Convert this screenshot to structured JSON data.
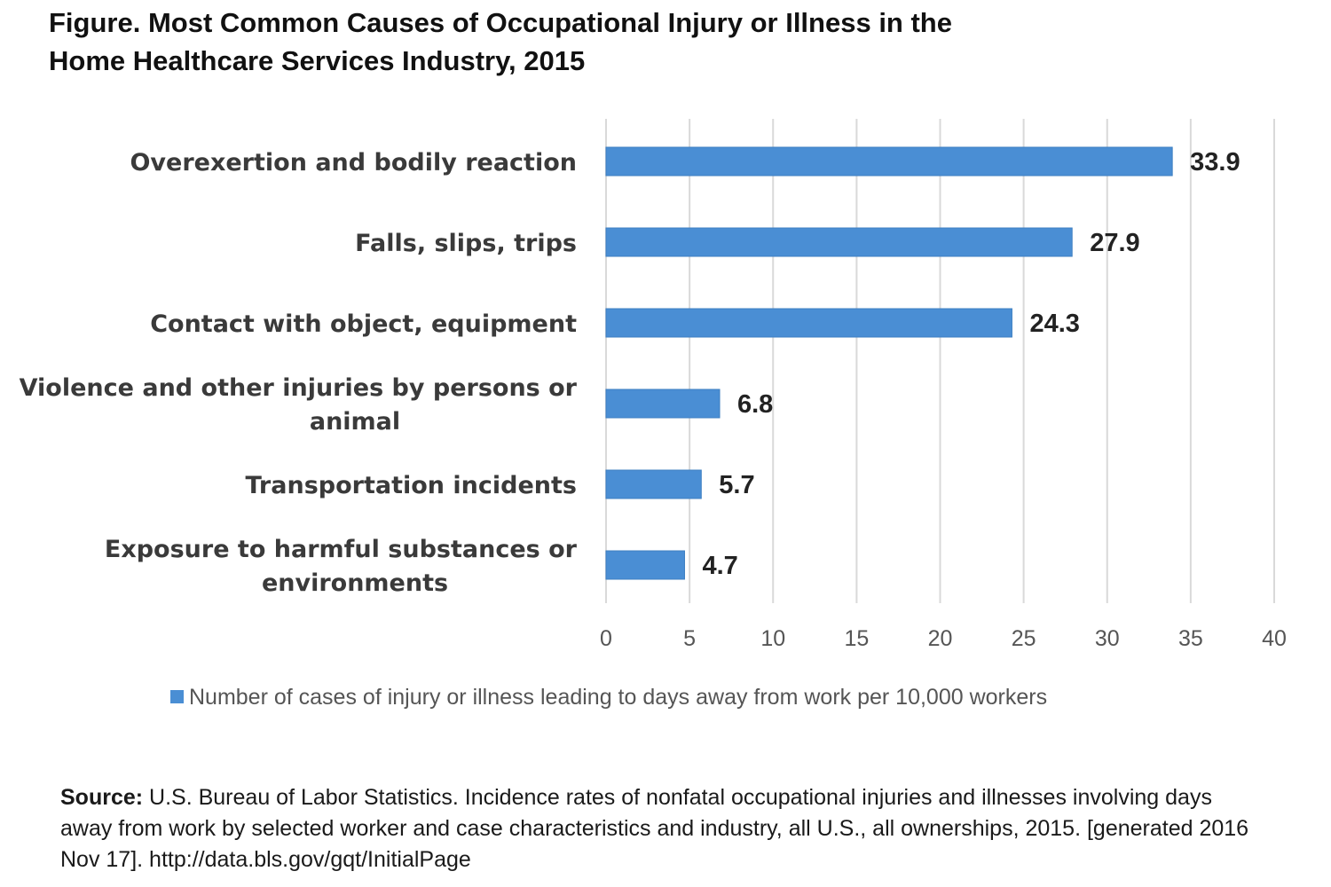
{
  "chart_data": {
    "type": "bar",
    "orientation": "horizontal",
    "title": [
      "Figure. Most Common Causes of Occupational Injury or Illness in the",
      "Home Healthcare Services Industry, 2015"
    ],
    "categories": [
      [
        "Overexertion and bodily reaction"
      ],
      [
        "Falls, slips, trips"
      ],
      [
        "Contact with object, equipment"
      ],
      [
        "Violence and other injuries by persons or",
        "animal"
      ],
      [
        "Transportation incidents"
      ],
      [
        "Exposure to harmful substances or",
        "environments"
      ]
    ],
    "values": [
      33.9,
      27.9,
      24.3,
      6.8,
      5.7,
      4.7
    ],
    "value_labels": [
      "33.9",
      "27.9",
      "24.3",
      "6.8",
      "5.7",
      "4.7"
    ],
    "xlim": [
      0,
      40
    ],
    "x_ticks": [
      0,
      5,
      10,
      15,
      20,
      25,
      30,
      35,
      40
    ],
    "x_tick_labels": [
      "0",
      "5",
      "10",
      "15",
      "20",
      "25",
      "30",
      "35",
      "40"
    ],
    "grid": true,
    "legend_position": "bottom",
    "series": [
      {
        "name": "Number of cases of injury or illness leading to days away from work per 10,000 workers",
        "color": "#4a8ed4"
      }
    ]
  },
  "source": {
    "label": "Source:",
    "text": " U.S. Bureau of Labor Statistics. Incidence rates of nonfatal occupational injuries and illnesses involving days away from work by selected worker and case characteristics and industry, all U.S., all ownerships, 2015. [generated 2016 Nov 17]. http://data.bls.gov/gqt/InitialPage"
  }
}
